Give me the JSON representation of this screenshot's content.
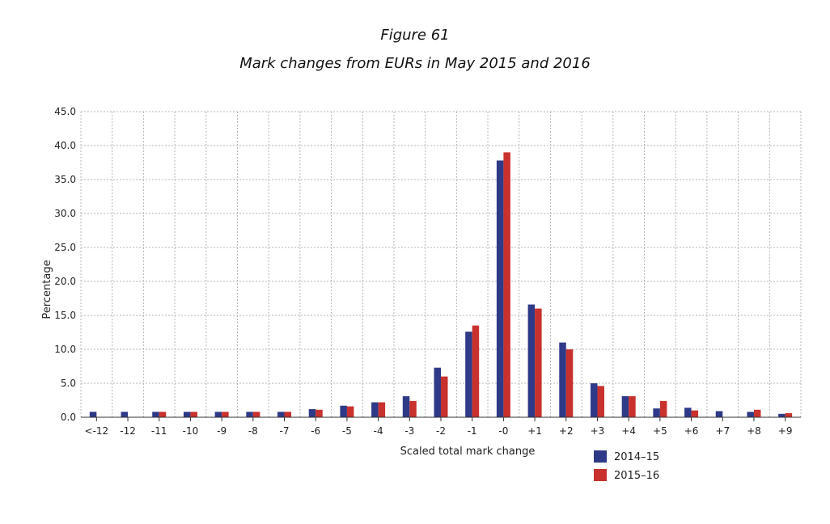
{
  "figure_label": "Figure 61",
  "figure_caption": "Mark changes from EURs in May 2015 and 2016",
  "chart_data": {
    "type": "bar",
    "title": "Mark changes from EURs in May 2015 and 2016",
    "xlabel": "Scaled total mark change",
    "ylabel": "Percentage",
    "ylim": [
      0,
      45
    ],
    "yticks": [
      "0.0",
      "5.0",
      "10.0",
      "15.0",
      "20.0",
      "25.0",
      "30.0",
      "35.0",
      "40.0",
      "45.0"
    ],
    "grid": true,
    "legend_position": "bottom-right",
    "categories": [
      "<-12",
      "-12",
      "-11",
      "-10",
      "-9",
      "-8",
      "-7",
      "-6",
      "-5",
      "-4",
      "-3",
      "-2",
      "-1",
      "-0",
      "+1",
      "+2",
      "+3",
      "+4",
      "+5",
      "+6",
      "+7",
      "+8",
      "+9"
    ],
    "series": [
      {
        "name": "2014–15",
        "color": "#2e3a87",
        "values": [
          0.8,
          0.8,
          0.8,
          0.8,
          0.8,
          0.8,
          0.8,
          1.2,
          1.7,
          2.2,
          3.1,
          7.3,
          12.6,
          37.8,
          16.6,
          11.0,
          5.0,
          3.1,
          1.3,
          1.4,
          0.9,
          0.8,
          0.5
        ]
      },
      {
        "name": "2015–16",
        "color": "#c8312d",
        "values": [
          0.0,
          0.0,
          0.8,
          0.8,
          0.8,
          0.8,
          0.8,
          1.1,
          1.6,
          2.2,
          2.4,
          6.0,
          13.5,
          39.0,
          16.0,
          10.0,
          4.6,
          3.1,
          2.4,
          1.0,
          0.0,
          1.1,
          0.6
        ]
      }
    ]
  }
}
